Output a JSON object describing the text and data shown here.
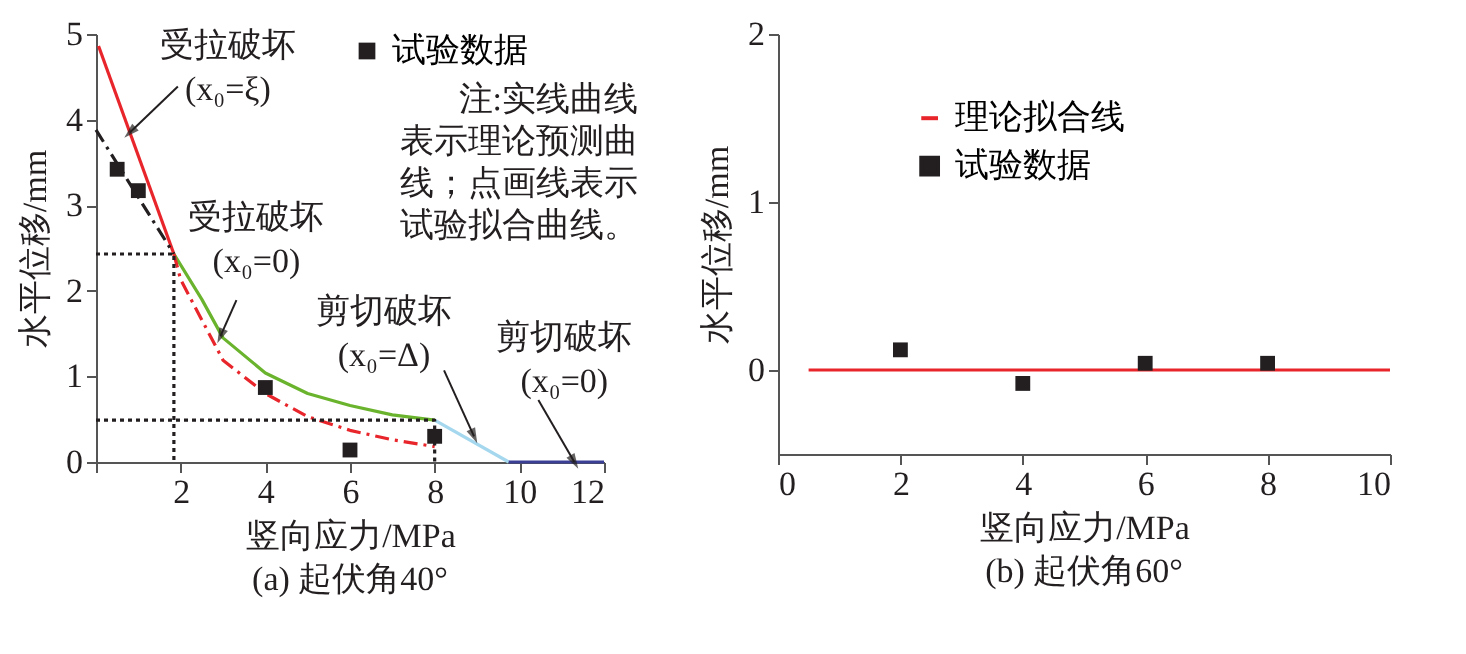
{
  "chart_data": [
    {
      "type": "line",
      "title": "(a) 起伏角40°",
      "xlabel": "竖向应力/MPa",
      "ylabel": "水平位移/mm",
      "xlim": [
        0,
        12
      ],
      "xticks": [
        {
          "value": 0,
          "label": null
        },
        2,
        4,
        6,
        8,
        10,
        12
      ],
      "ylim": [
        0,
        5
      ],
      "yticks": [
        0,
        1,
        2,
        3,
        4,
        5
      ],
      "legend": "top right",
      "series": [
        {
          "color": "#e8252a",
          "line_style": "solid",
          "x": [
            0.06,
            1.84
          ],
          "values": [
            4.86,
            2.43
          ]
        },
        {
          "color": "#6ab42d",
          "line_style": "solid",
          "x": [
            1.84,
            2.5,
            3,
            4,
            5,
            6,
            7,
            8
          ],
          "values": [
            2.43,
            1.9,
            1.45,
            1.04,
            0.8,
            0.66,
            0.55,
            0.49
          ]
        },
        {
          "color": "#a5d8ee",
          "line_style": "solid",
          "x": [
            8,
            9.75
          ],
          "values": [
            0.49,
            0
          ]
        },
        {
          "color": "#3b3f95",
          "line_style": "solid",
          "x": [
            9.75,
            12
          ],
          "values": [
            0,
            0
          ]
        },
        {
          "color": "#231f20",
          "line_style": "dashed",
          "x": [
            0,
            1.84
          ],
          "values": [
            3.88,
            2.43
          ]
        },
        {
          "color": "#e8252a",
          "line_style": "dashed",
          "x": [
            1.84,
            2,
            3,
            4,
            5,
            6,
            7,
            8
          ],
          "values": [
            2.43,
            2.13,
            1.19,
            0.8,
            0.53,
            0.37,
            0.26,
            0.18
          ]
        },
        {
          "color": "#231f20",
          "line_style": "dotted",
          "x": [
            0,
            1.84,
            1.84
          ],
          "values": [
            2.43,
            2.43,
            0
          ]
        },
        {
          "color": "#231f20",
          "line_style": "dotted",
          "x": [
            0,
            8,
            8
          ],
          "values": [
            0.49,
            0.49,
            0
          ]
        },
        {
          "name": "试验数据",
          "type": "scatter",
          "marker": "square",
          "color": "#231f20",
          "x": [
            0.5,
            1,
            4,
            6,
            8
          ],
          "values": [
            3.42,
            3.17,
            0.87,
            0.14,
            0.3
          ]
        }
      ],
      "annotations": [
        {
          "text": "受拉破坏\n(x₀=ξ)",
          "x": 0.8,
          "y": 3.85
        },
        {
          "text": "受拉破坏\n(x₀=0)",
          "x": 2.94,
          "y": 1.47
        },
        {
          "text": "剪切破坏\n(x₀=Δ)",
          "x": 8.93,
          "y": 0.3
        },
        {
          "text": "剪切破坏\n(x₀=0)",
          "x": 11.3,
          "y": 0
        },
        "注:实线曲线表示理论预测曲线；点画线表示试验拟合曲线。"
      ]
    },
    {
      "type": "line",
      "title": "(b) 起伏角60°",
      "xlabel": "竖向应力/MPa",
      "ylabel": "水平位移/mm",
      "xlim": [
        0,
        10
      ],
      "xticks": [
        0,
        2,
        4,
        6,
        8,
        10
      ],
      "ylim": [
        -0.5,
        2
      ],
      "yticks": [
        0,
        1,
        2
      ],
      "legend": "top left",
      "series": [
        {
          "name": "理论拟合线",
          "color": "#e8252a",
          "line_style": "solid",
          "x": [
            0.5,
            10
          ],
          "values": [
            0,
            0
          ]
        },
        {
          "name": "试验数据",
          "type": "scatter",
          "marker": "square",
          "color": "#231f20",
          "x": [
            2,
            4,
            6,
            8
          ],
          "values": [
            0.12,
            -0.08,
            0.04,
            0.04
          ]
        }
      ]
    }
  ]
}
